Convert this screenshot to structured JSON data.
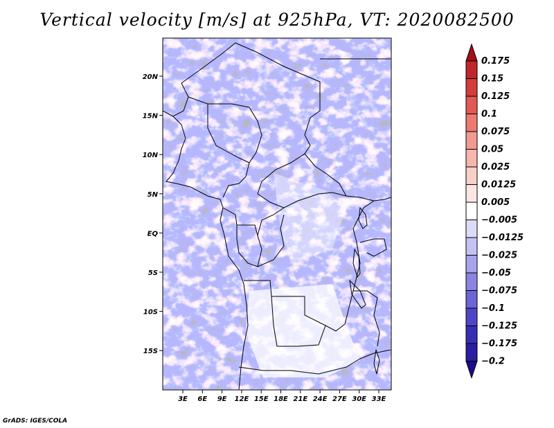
{
  "title": "Vertical velocity [m/s] at 925hPa, VT: 2020082500",
  "credit": "GrADS: IGES/COLA",
  "map": {
    "lat_ticks": [
      "20N",
      "15N",
      "10N",
      "5N",
      "EQ",
      "5S",
      "10S",
      "15S"
    ],
    "lon_ticks": [
      "3E",
      "6E",
      "9E",
      "12E",
      "15E",
      "18E",
      "21E",
      "24E",
      "27E",
      "30E",
      "33E"
    ]
  },
  "colorbar": {
    "labels": [
      "0.175",
      "0.15",
      "0.125",
      "0.1",
      "0.075",
      "0.05",
      "0.025",
      "0.0125",
      "0.005",
      "-0.005",
      "-0.0125",
      "-0.025",
      "-0.05",
      "-0.075",
      "-0.1",
      "-0.125",
      "-0.175",
      "-0.2"
    ],
    "colors": [
      "#a50f15",
      "#c0272d",
      "#d73c3c",
      "#e35a55",
      "#ec7a72",
      "#f29a92",
      "#f6b6ae",
      "#f9cfc9",
      "#fce6e3",
      "#ffffff",
      "#dddcf8",
      "#c4c2f3",
      "#a7a4ec",
      "#8a85e3",
      "#6b65d8",
      "#4d47c8",
      "#3430b4",
      "#2a1fa0",
      "#1e0a8c"
    ]
  }
}
